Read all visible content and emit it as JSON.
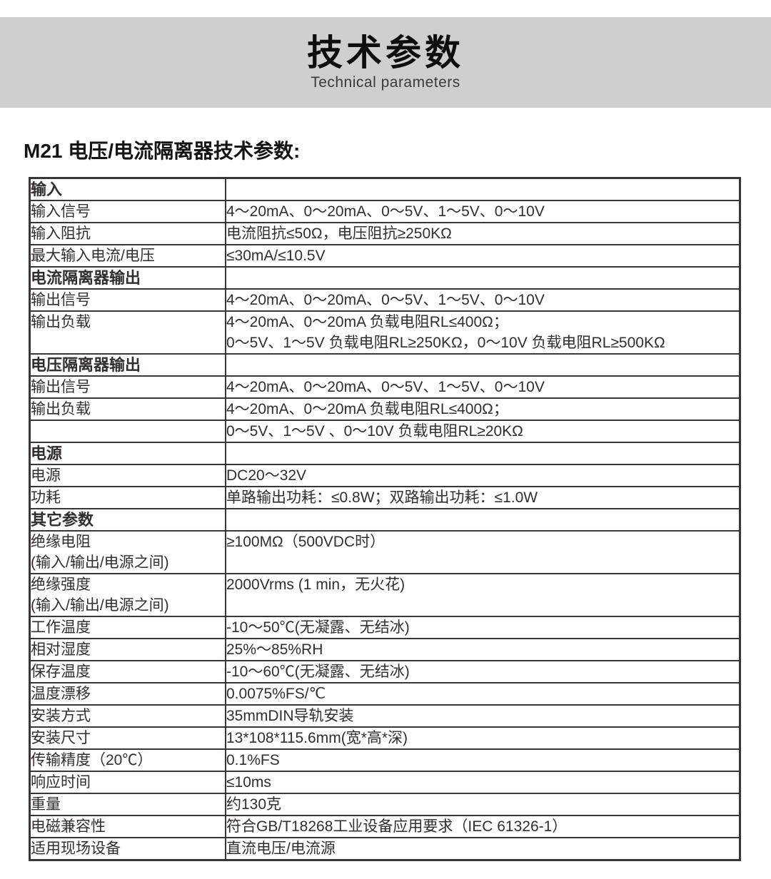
{
  "banner": {
    "title": "技术参数",
    "subtitle": "Technical parameters",
    "bg_color": "#d0cfd0"
  },
  "heading": "M21 电压/电流隔离器技术参数:",
  "spec_table": {
    "rows": [
      {
        "type": "section",
        "label": "输入",
        "value": ""
      },
      {
        "type": "row",
        "label": "输入信号",
        "value": "4～20mA、0～20mA、0～5V、1～5V、0～10V"
      },
      {
        "type": "row",
        "label": "输入阻抗",
        "value": "电流阻抗≤50Ω，电压阻抗≥250KΩ"
      },
      {
        "type": "row",
        "label": "最大输入电流/电压",
        "value": "≤30mA/≤10.5V"
      },
      {
        "type": "section",
        "label": "电流隔离器输出",
        "value": ""
      },
      {
        "type": "row",
        "label": "输出信号",
        "value": "4～20mA、0～20mA、0～5V、1～5V、0～10V"
      },
      {
        "type": "row",
        "label": "输出负载",
        "value": "4～20mA、0～20mA 负载电阻RL≤400Ω；",
        "value_line2": "0～5V、1～5V 负载电阻RL≥250KΩ，0～10V 负载电阻RL≥500KΩ"
      },
      {
        "type": "section",
        "label": "电压隔离器输出",
        "value": ""
      },
      {
        "type": "row",
        "label": "输出信号",
        "value": "4～20mA、0～20mA、0～5V、1～5V、0～10V"
      },
      {
        "type": "row",
        "label": "输出负载",
        "value": "4～20mA、0～20mA 负载电阻RL≤400Ω；"
      },
      {
        "type": "row",
        "label": "",
        "value": "0～5V、1～5V 、0～10V 负载电阻RL≥20KΩ"
      },
      {
        "type": "section",
        "label": "电源",
        "value": ""
      },
      {
        "type": "row",
        "label": "电源",
        "value": "DC20～32V"
      },
      {
        "type": "row",
        "label": "功耗",
        "value": "单路输出功耗：≤0.8W；双路输出功耗：≤1.0W"
      },
      {
        "type": "section",
        "label": "其它参数",
        "value": ""
      },
      {
        "type": "row",
        "label": "绝缘电阻",
        "label_line2": "(输入/输出/电源之间)",
        "value": "≥100MΩ（500VDC时）"
      },
      {
        "type": "row",
        "label": "绝缘强度",
        "label_line2": "(输入/输出/电源之间)",
        "value": "2000Vrms (1 min，无火花)"
      },
      {
        "type": "row",
        "label": "工作温度",
        "value": "-10～50℃(无凝露、无结冰)"
      },
      {
        "type": "row",
        "label": "相对湿度",
        "value": "25%～85%RH"
      },
      {
        "type": "row",
        "label": "保存温度",
        "value": "-10～60℃(无凝露、无结冰)"
      },
      {
        "type": "row",
        "label": "温度漂移",
        "value": "0.0075%FS/℃"
      },
      {
        "type": "row",
        "label": "安装方式",
        "value": "35mmDIN导轨安装"
      },
      {
        "type": "row",
        "label": "安装尺寸",
        "value": "13*108*115.6mm(宽*高*深)"
      },
      {
        "type": "row",
        "label": "传输精度（20℃）",
        "value": "0.1%FS"
      },
      {
        "type": "row",
        "label": "响应时间",
        "value": "≤10ms"
      },
      {
        "type": "row",
        "label": "重量",
        "value": "约130克"
      },
      {
        "type": "row",
        "label": "电磁兼容性",
        "value": "符合GB/T18268工业设备应用要求（IEC 61326-1）"
      },
      {
        "type": "row",
        "label": "适用现场设备",
        "value": "直流电压/电流源"
      }
    ]
  }
}
